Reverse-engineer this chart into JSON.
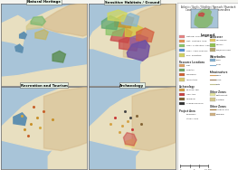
{
  "title_line1": "Atlantic / Gaelic / Sleibhte / Rannach / Ranntach",
  "title_line2": "Coastal Plan for the New Resource Area",
  "panel_titles": [
    "Natural Heritage",
    "Sensitive Habitats / Ground",
    "Recreation and Tourism",
    "Archaeology"
  ],
  "fig_bg": "#f5f5f0",
  "panel_border": "#666666",
  "water_color": "#a8c4d8",
  "deep_water": "#7aa0bc",
  "land_color": "#e8dfc0",
  "hill_color": "#d4b888",
  "panels": [
    {
      "title": "Natural Heritage",
      "title_bg": "#e8f0e8",
      "water": "#a8c4d8",
      "land": "#e8dfc0",
      "terrain": "#d4c8a0"
    },
    {
      "title": "Sensitive Habitats / Ground",
      "title_bg": "#e8f0e8",
      "water": "#a8c4d8",
      "land": "#e8dfc0",
      "terrain": "#d4c8a0"
    },
    {
      "title": "Recreation and Tourism",
      "title_bg": "#e8f0e8",
      "water": "#a8c4d8",
      "land": "#e8dfc0",
      "terrain": "#d4c8a0"
    },
    {
      "title": "Archaeology",
      "title_bg": "#e8f0e8",
      "water": "#a8c4d8",
      "land": "#e8dfc0",
      "terrain": "#d4c8a0"
    }
  ],
  "legend_title1": "Atlantic / Gaelic / Sleibhte / Rannach / Ranntach",
  "legend_title2": "Coastal Plan for the New Resource Area",
  "thumb_land": "#8ab878",
  "thumb_highlight": "#c84040",
  "scale_color": "#555555"
}
